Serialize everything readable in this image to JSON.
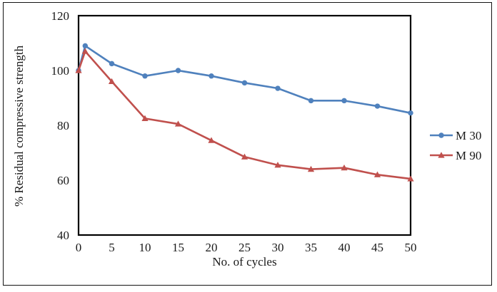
{
  "figure": {
    "background": "#ffffff",
    "border_color": "#141414",
    "axis_color": "#000000",
    "text_color": "#1a1a1a"
  },
  "chart_data": {
    "type": "line",
    "title": "",
    "xlabel": "No. of cycles",
    "ylabel": "% Residual compressive strength",
    "xlim": [
      0,
      50
    ],
    "ylim": [
      40,
      120
    ],
    "xticks": [
      0,
      5,
      10,
      15,
      20,
      25,
      30,
      35,
      40,
      45,
      50
    ],
    "yticks": [
      40,
      60,
      80,
      100,
      120
    ],
    "grid": false,
    "legend_position": "right",
    "x": [
      0,
      1,
      5,
      10,
      15,
      20,
      25,
      30,
      35,
      40,
      45,
      50
    ],
    "series": [
      {
        "name": "M 30",
        "color": "#4F81BD",
        "marker": "circle",
        "values": [
          100,
          109,
          102.5,
          98,
          100,
          98,
          95.5,
          93.5,
          89,
          89,
          87,
          84.5
        ]
      },
      {
        "name": "M 90",
        "color": "#C0504D",
        "marker": "triangle",
        "values": [
          100,
          107,
          96,
          82.5,
          80.5,
          74.5,
          68.5,
          65.5,
          64,
          64.5,
          62,
          60.5
        ]
      }
    ]
  }
}
